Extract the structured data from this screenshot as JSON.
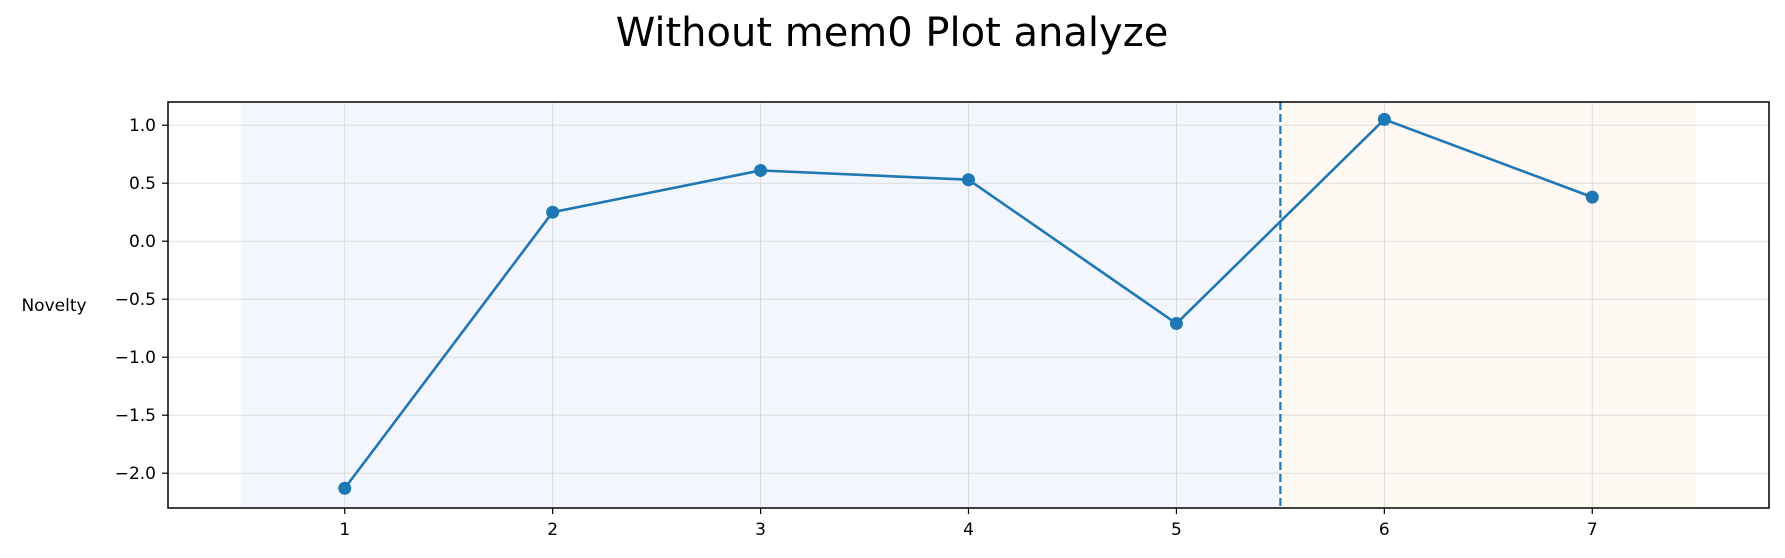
{
  "chart_data": {
    "type": "line",
    "title": "Without mem0 Plot analyze",
    "xlabel": "",
    "ylabel": "Novelty",
    "x": [
      1,
      2,
      3,
      4,
      5,
      6,
      7
    ],
    "series": [
      {
        "values": [
          -2.13,
          0.25,
          0.61,
          0.53,
          -0.71,
          1.05,
          0.38
        ]
      }
    ],
    "xticks": [
      1,
      2,
      3,
      4,
      5,
      6,
      7
    ],
    "yticks": [
      -2.0,
      -1.5,
      -1.0,
      -0.5,
      0.0,
      0.5,
      1.0
    ],
    "xlim": [
      0.15,
      7.85
    ],
    "ylim": [
      -2.3,
      1.2
    ],
    "grid": true,
    "regions": [
      {
        "x0": 0.5,
        "x1": 5.5,
        "color": "#f3f7fd"
      },
      {
        "x0": 5.5,
        "x1": 7.5,
        "color": "#fef9f2"
      }
    ],
    "vline": {
      "x": 5.5,
      "style": "dashed",
      "color": "#1f77b4"
    },
    "line_color": "#1f77b4"
  }
}
